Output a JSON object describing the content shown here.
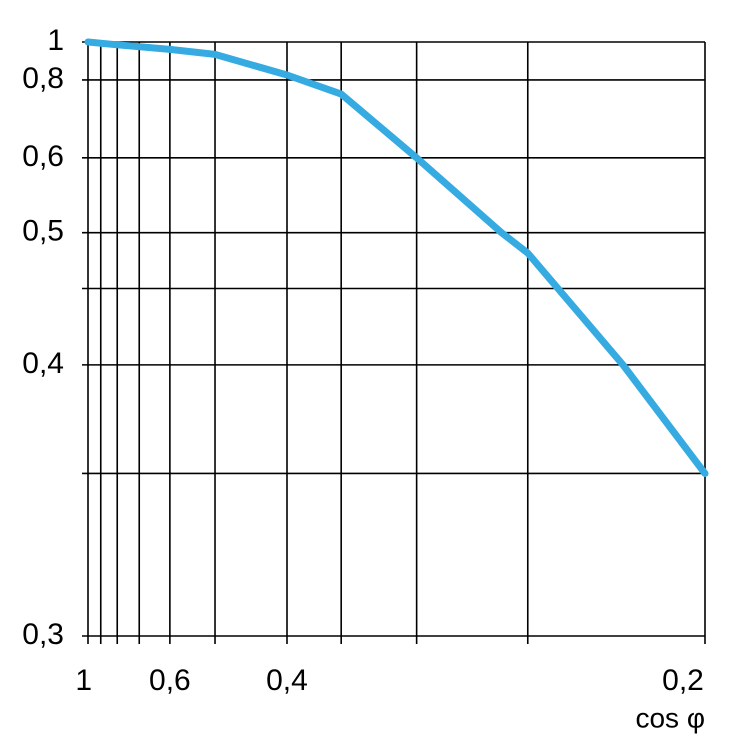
{
  "chart_data": {
    "type": "line",
    "x_label": "cos φ",
    "xlim": [
      1,
      0.2
    ],
    "xticks": [
      {
        "value": 1,
        "label": "1"
      },
      {
        "value": 0.6,
        "label": "0,6"
      },
      {
        "value": 0.4,
        "label": "0,4"
      },
      {
        "value": 0.2,
        "label": "0,2"
      }
    ],
    "minor_xticks": [
      0.9,
      0.8,
      0.7,
      0.5,
      0.35,
      0.3,
      0.25
    ],
    "ylim": [
      0.3,
      1
    ],
    "yticks": [
      {
        "value": 1,
        "label": "1"
      },
      {
        "value": 0.8,
        "label": "0,8"
      },
      {
        "value": 0.6,
        "label": "0,6"
      },
      {
        "value": 0.5,
        "label": "0,5"
      },
      {
        "value": 0.4,
        "label": "0,4"
      },
      {
        "value": 0.3,
        "label": "0,3"
      }
    ],
    "minor_yticks": [
      0.45,
      0.35
    ],
    "grid": true,
    "x": [
      1,
      0.8,
      0.6,
      0.5,
      0.4,
      0.35,
      0.3,
      0.26,
      0.25,
      0.22,
      0.2
    ],
    "series": [
      {
        "color": "#35abe2",
        "values": [
          1,
          0.98,
          0.95,
          0.92,
          0.82,
          0.75,
          0.6,
          0.5,
          0.48,
          0.4,
          0.35
        ]
      }
    ]
  }
}
